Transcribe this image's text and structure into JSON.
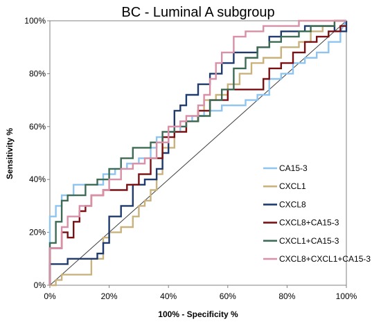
{
  "chart_data": {
    "type": "line",
    "title": "BC - Luminal A subgroup",
    "xlabel": "100% - Specificity %",
    "ylabel": "Sensitivity %",
    "xlim": [
      0,
      100
    ],
    "ylim": [
      0,
      100
    ],
    "x_ticks": [
      "0%",
      "20%",
      "40%",
      "60%",
      "80%",
      "100%"
    ],
    "y_ticks": [
      "0%",
      "20%",
      "40%",
      "60%",
      "80%",
      "100%"
    ],
    "legend_position": "right",
    "reference_line": {
      "x": [
        0,
        100
      ],
      "y": [
        0,
        100
      ],
      "color": "#404040"
    },
    "series": [
      {
        "name": "CA15-3",
        "color": "#8ec4f0",
        "x": [
          0,
          0,
          2,
          2,
          4,
          4,
          8,
          8,
          18,
          18,
          22,
          22,
          26,
          26,
          30,
          30,
          34,
          34,
          36,
          36,
          40,
          40,
          44,
          44,
          48,
          48,
          52,
          52,
          58,
          58,
          62,
          62,
          66,
          66,
          70,
          70,
          74,
          74,
          78,
          78,
          82,
          82,
          86,
          86,
          90,
          90,
          94,
          94,
          98,
          98,
          100
        ],
        "y": [
          0,
          26,
          26,
          30,
          30,
          34,
          34,
          38,
          38,
          42,
          42,
          44,
          44,
          46,
          46,
          48,
          48,
          52,
          52,
          56,
          56,
          58,
          58,
          62,
          62,
          64,
          64,
          66,
          66,
          68,
          68,
          68,
          68,
          70,
          70,
          72,
          72,
          78,
          78,
          80,
          80,
          84,
          84,
          86,
          86,
          88,
          88,
          92,
          92,
          96,
          100
        ]
      },
      {
        "name": "CXCL1",
        "color": "#c9b27c",
        "x": [
          0,
          2,
          2,
          4,
          4,
          6,
          6,
          14,
          14,
          18,
          18,
          20,
          20,
          24,
          24,
          28,
          28,
          30,
          30,
          32,
          32,
          34,
          34,
          36,
          36,
          38,
          38,
          42,
          42,
          46,
          46,
          50,
          50,
          52,
          52,
          56,
          56,
          60,
          60,
          64,
          64,
          68,
          68,
          72,
          72,
          78,
          78,
          84,
          84,
          88,
          88,
          92,
          92,
          96,
          96,
          100
        ],
        "y": [
          0,
          0,
          2,
          2,
          4,
          4,
          4,
          4,
          10,
          10,
          18,
          18,
          20,
          20,
          22,
          22,
          26,
          26,
          30,
          30,
          32,
          32,
          36,
          36,
          42,
          42,
          52,
          52,
          58,
          58,
          62,
          62,
          66,
          66,
          70,
          70,
          72,
          72,
          76,
          76,
          80,
          80,
          84,
          84,
          86,
          86,
          90,
          90,
          92,
          92,
          96,
          96,
          98,
          98,
          100,
          100
        ]
      },
      {
        "name": "CXCL8",
        "color": "#1e3a6e",
        "x": [
          0,
          0,
          6,
          6,
          10,
          10,
          16,
          16,
          18,
          18,
          20,
          20,
          24,
          24,
          28,
          28,
          32,
          32,
          36,
          36,
          38,
          38,
          40,
          40,
          42,
          42,
          44,
          44,
          46,
          46,
          50,
          50,
          54,
          54,
          58,
          58,
          62,
          62,
          66,
          66,
          70,
          70,
          74,
          74,
          78,
          78,
          82,
          82,
          86,
          86,
          92,
          92,
          96,
          96,
          100,
          100
        ],
        "y": [
          0,
          8,
          8,
          10,
          10,
          10,
          10,
          12,
          12,
          16,
          16,
          26,
          26,
          30,
          30,
          38,
          38,
          40,
          40,
          44,
          44,
          50,
          50,
          58,
          58,
          66,
          66,
          68,
          68,
          72,
          72,
          76,
          76,
          80,
          80,
          84,
          84,
          88,
          88,
          88,
          88,
          90,
          90,
          94,
          94,
          96,
          96,
          96,
          96,
          98,
          98,
          98,
          98,
          96,
          96,
          100
        ]
      },
      {
        "name": "CXCL8+CA15-3",
        "color": "#7a1014",
        "x": [
          0,
          0,
          4,
          4,
          6,
          6,
          8,
          8,
          10,
          10,
          12,
          12,
          14,
          14,
          18,
          18,
          22,
          22,
          26,
          26,
          30,
          30,
          34,
          34,
          38,
          38,
          42,
          42,
          46,
          46,
          50,
          50,
          54,
          54,
          60,
          60,
          72,
          72,
          74,
          74,
          78,
          78,
          82,
          82,
          86,
          86,
          90,
          90,
          94,
          94,
          98,
          98,
          100
        ],
        "y": [
          0,
          14,
          14,
          20,
          20,
          18,
          18,
          24,
          24,
          28,
          28,
          30,
          30,
          34,
          34,
          36,
          36,
          36,
          36,
          38,
          38,
          42,
          42,
          48,
          48,
          56,
          56,
          58,
          58,
          62,
          62,
          66,
          66,
          70,
          70,
          74,
          74,
          78,
          78,
          82,
          82,
          84,
          84,
          88,
          88,
          92,
          92,
          94,
          94,
          96,
          96,
          98,
          98
        ]
      },
      {
        "name": "CXCL1+CA15-3",
        "color": "#3d6b55",
        "x": [
          0,
          0,
          2,
          2,
          4,
          4,
          6,
          6,
          12,
          12,
          16,
          16,
          20,
          20,
          24,
          24,
          28,
          28,
          34,
          34,
          38,
          38,
          42,
          42,
          46,
          46,
          50,
          50,
          54,
          54,
          58,
          58,
          62,
          62,
          66,
          66,
          70,
          70,
          74,
          74,
          78,
          78,
          84,
          84,
          88,
          88,
          92,
          92,
          96,
          96,
          100,
          100
        ],
        "y": [
          0,
          16,
          16,
          24,
          24,
          32,
          32,
          34,
          34,
          38,
          38,
          40,
          40,
          44,
          44,
          48,
          48,
          52,
          52,
          54,
          54,
          58,
          58,
          60,
          60,
          62,
          62,
          64,
          64,
          70,
          70,
          74,
          74,
          82,
          82,
          86,
          86,
          90,
          90,
          92,
          92,
          94,
          94,
          96,
          96,
          98,
          98,
          98,
          98,
          100,
          100,
          100
        ]
      },
      {
        "name": "CXCL8+CXCL1+CA15-3",
        "color": "#d98fa6",
        "x": [
          0,
          0,
          4,
          4,
          6,
          6,
          10,
          10,
          14,
          14,
          18,
          18,
          20,
          20,
          24,
          24,
          28,
          28,
          32,
          32,
          36,
          36,
          40,
          40,
          44,
          44,
          46,
          46,
          50,
          50,
          52,
          52,
          54,
          54,
          56,
          56,
          58,
          58,
          62,
          62,
          66,
          66,
          72,
          72,
          78,
          78,
          84,
          84,
          90,
          90,
          92,
          92,
          100
        ],
        "y": [
          0,
          14,
          14,
          22,
          22,
          26,
          26,
          30,
          30,
          34,
          34,
          36,
          36,
          40,
          40,
          44,
          44,
          46,
          46,
          48,
          48,
          54,
          54,
          60,
          60,
          62,
          62,
          64,
          64,
          68,
          68,
          72,
          72,
          78,
          78,
          84,
          84,
          88,
          88,
          94,
          94,
          96,
          96,
          98,
          98,
          98,
          98,
          100,
          100,
          100,
          100,
          100,
          100
        ]
      }
    ]
  }
}
